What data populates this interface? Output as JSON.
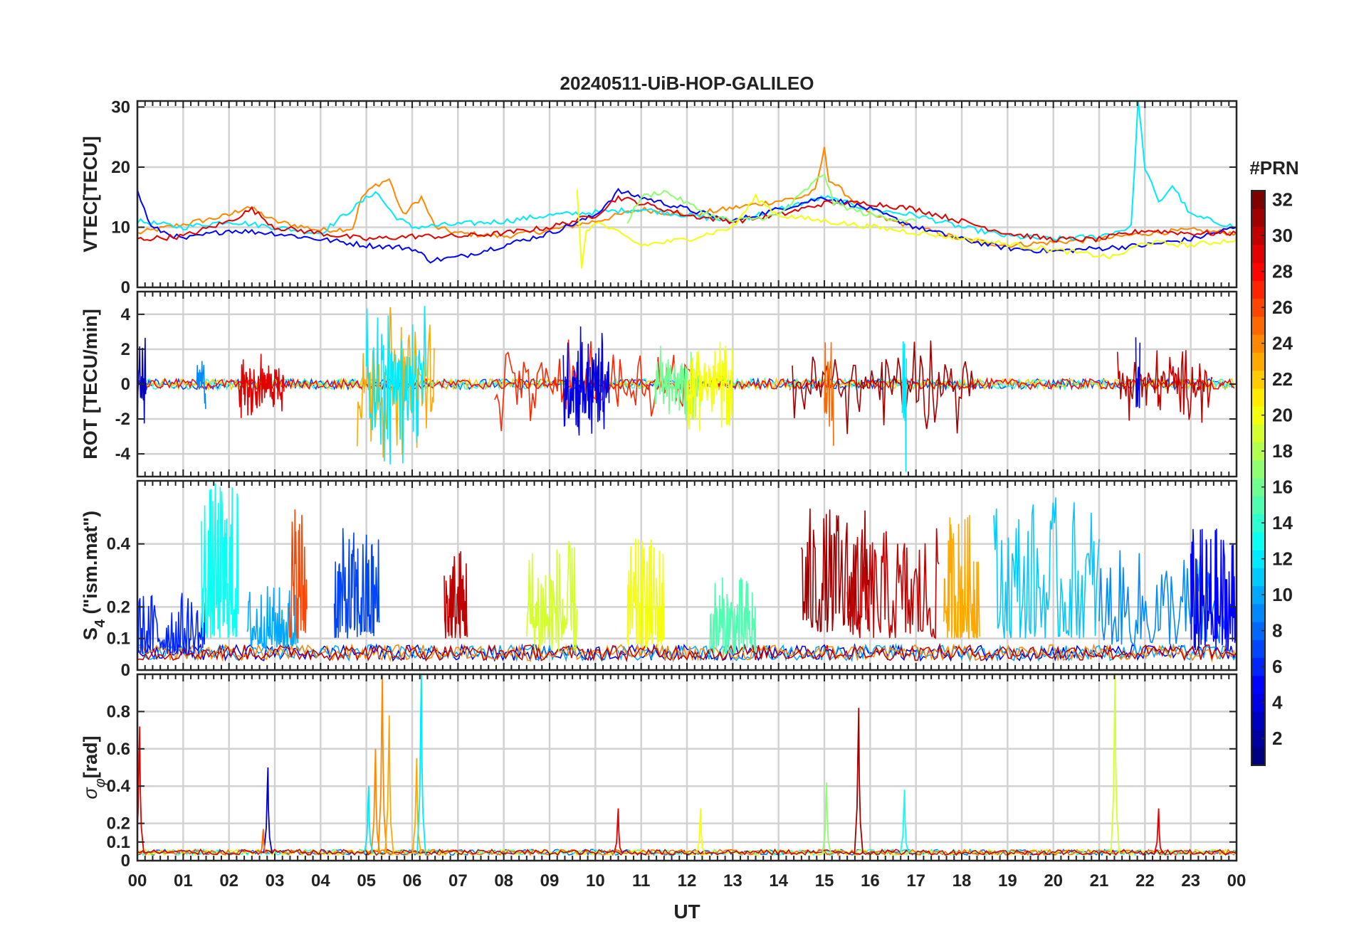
{
  "title": "20240511-UiB-HOP-GALILEO",
  "x_axis": {
    "label": "UT",
    "ticks": [
      "00",
      "01",
      "02",
      "03",
      "04",
      "05",
      "06",
      "07",
      "08",
      "09",
      "10",
      "11",
      "12",
      "13",
      "14",
      "15",
      "16",
      "17",
      "18",
      "19",
      "20",
      "21",
      "22",
      "23",
      "00"
    ],
    "range_hours": [
      0,
      24
    ]
  },
  "colorbar": {
    "label": "#PRN",
    "range": [
      1,
      32
    ],
    "ticks": [
      "2",
      "4",
      "6",
      "8",
      "10",
      "12",
      "14",
      "16",
      "18",
      "20",
      "22",
      "24",
      "26",
      "28",
      "30",
      "32"
    ],
    "colormap": "jet"
  },
  "chart_data": [
    {
      "id": "vtec",
      "type": "line",
      "ylabel": "VTEC[TECU]",
      "ylim": [
        0,
        31
      ],
      "yticks": [
        0,
        10,
        20,
        30
      ],
      "ytick_labels": [
        "0",
        "10",
        "20",
        "30"
      ],
      "grid": true,
      "series": [
        {
          "prn": 24,
          "points": [
            [
              0,
              9
            ],
            [
              1,
              10.5
            ],
            [
              2,
              12
            ],
            [
              2.4,
              13.5
            ],
            [
              3,
              11
            ],
            [
              4,
              9.5
            ],
            [
              4.7,
              9.8
            ],
            [
              4.9,
              15
            ],
            [
              5.2,
              17
            ],
            [
              5.5,
              18
            ],
            [
              5.8,
              12
            ],
            [
              6.2,
              15
            ],
            [
              6.5,
              10
            ],
            [
              7,
              9
            ],
            [
              8,
              8.5
            ],
            [
              9,
              9.5
            ],
            [
              10,
              11
            ],
            [
              11,
              13
            ],
            [
              12,
              12
            ],
            [
              14.5,
              15
            ],
            [
              14.8,
              16
            ],
            [
              15,
              23
            ],
            [
              15.1,
              18
            ],
            [
              16,
              12
            ],
            [
              17,
              10
            ],
            [
              18,
              8
            ],
            [
              19,
              7
            ],
            [
              20,
              7.5
            ],
            [
              21,
              8
            ],
            [
              22,
              9
            ],
            [
              23,
              9.5
            ],
            [
              24,
              9
            ]
          ]
        },
        {
          "prn": 12,
          "points": [
            [
              0,
              11
            ],
            [
              1,
              10
            ],
            [
              2,
              11
            ],
            [
              3,
              10
            ],
            [
              4,
              9
            ],
            [
              5.2,
              16
            ],
            [
              5.6,
              12
            ],
            [
              6,
              10
            ],
            [
              7,
              10.5
            ],
            [
              8,
              11
            ],
            [
              9,
              12
            ],
            [
              10,
              12.5
            ],
            [
              11,
              13
            ],
            [
              12,
              12
            ],
            [
              13,
              11
            ],
            [
              14,
              13
            ],
            [
              15,
              15
            ],
            [
              16,
              13
            ],
            [
              17,
              12
            ],
            [
              18,
              10
            ],
            [
              19,
              8.5
            ],
            [
              20,
              8
            ],
            [
              21,
              8.5
            ],
            [
              21.7,
              10
            ],
            [
              21.85,
              31
            ],
            [
              22,
              20
            ],
            [
              22.3,
              14
            ],
            [
              22.6,
              17
            ],
            [
              23,
              12
            ],
            [
              24,
              10
            ]
          ]
        },
        {
          "prn": 5,
          "points": [
            [
              0,
              16
            ],
            [
              0.3,
              10
            ],
            [
              1,
              8
            ],
            [
              2,
              9.5
            ],
            [
              3,
              9
            ],
            [
              4,
              8
            ],
            [
              5,
              7
            ],
            [
              6,
              6.5
            ],
            [
              6.4,
              4.5
            ],
            [
              7,
              5
            ],
            [
              8,
              7
            ],
            [
              9,
              9
            ],
            [
              10,
              12
            ],
            [
              10.5,
              16
            ],
            [
              11,
              15
            ],
            [
              12,
              13
            ],
            [
              13,
              11
            ],
            [
              14,
              13
            ],
            [
              15,
              15
            ],
            [
              16,
              13
            ],
            [
              17,
              10
            ],
            [
              18,
              8
            ],
            [
              19,
              6.5
            ],
            [
              20,
              6
            ],
            [
              21,
              6.5
            ],
            [
              22,
              7
            ],
            [
              23,
              8
            ],
            [
              24,
              10
            ]
          ]
        },
        {
          "prn": 29,
          "points": [
            [
              0,
              8
            ],
            [
              1,
              8.5
            ],
            [
              2,
              11
            ],
            [
              2.5,
              13
            ],
            [
              3,
              10
            ],
            [
              4,
              9
            ],
            [
              5,
              8
            ],
            [
              6,
              8.5
            ],
            [
              7,
              8.5
            ],
            [
              8,
              9
            ],
            [
              9,
              10
            ],
            [
              10,
              12
            ],
            [
              10.5,
              15
            ],
            [
              11,
              14
            ],
            [
              12,
              12
            ],
            [
              13,
              11
            ],
            [
              14,
              12
            ],
            [
              15,
              14
            ],
            [
              16,
              14
            ],
            [
              17,
              13
            ],
            [
              18,
              11
            ],
            [
              19,
              9
            ],
            [
              20,
              8
            ],
            [
              21,
              8
            ],
            [
              22,
              9.5
            ],
            [
              23,
              9
            ],
            [
              24,
              9
            ]
          ]
        },
        {
          "prn": 17,
          "points": [
            [
              10.7,
              11
            ],
            [
              11,
              15
            ],
            [
              11.5,
              16
            ],
            [
              12,
              14
            ],
            [
              12.5,
              12
            ],
            [
              13,
              11
            ],
            [
              14,
              12
            ],
            [
              15,
              19
            ],
            [
              15.2,
              14
            ],
            [
              16,
              12
            ],
            [
              17,
              11
            ]
          ]
        },
        {
          "prn": 20,
          "points": [
            [
              9.6,
              16
            ],
            [
              9.7,
              3.5
            ],
            [
              9.8,
              9
            ],
            [
              10,
              11
            ],
            [
              11,
              7
            ],
            [
              12,
              8
            ],
            [
              13,
              10
            ],
            [
              13.5,
              15
            ],
            [
              14,
              12
            ],
            [
              21.3,
              5
            ],
            [
              21.6,
              6
            ],
            [
              22,
              7.5
            ],
            [
              23,
              7
            ],
            [
              24,
              8
            ]
          ]
        }
      ]
    },
    {
      "id": "rot",
      "type": "line",
      "ylabel": "ROT [TECU/min]",
      "ylim": [
        -5.3,
        5.3
      ],
      "yticks": [
        -4,
        -2,
        0,
        2,
        4
      ],
      "ytick_labels": [
        "-4",
        "-2",
        "0",
        "2",
        "4"
      ],
      "grid": true,
      "bursts": [
        {
          "start": 0,
          "end": 0.2,
          "amp": 3.5,
          "prn": 3
        },
        {
          "start": 1.3,
          "end": 1.5,
          "amp": 2.5,
          "prn": 9
        },
        {
          "start": 2.2,
          "end": 3.2,
          "amp": 2.2,
          "prn": 29
        },
        {
          "start": 4.8,
          "end": 6.5,
          "amp": 5.3,
          "prn": 23
        },
        {
          "start": 5.0,
          "end": 6.3,
          "amp": 5.3,
          "prn": 12
        },
        {
          "start": 7.8,
          "end": 12.2,
          "amp": 3.2,
          "prn": 27
        },
        {
          "start": 9.3,
          "end": 10.3,
          "amp": 4.5,
          "prn": 4
        },
        {
          "start": 11.3,
          "end": 12.3,
          "amp": 2.6,
          "prn": 16
        },
        {
          "start": 12.0,
          "end": 13.0,
          "amp": 3.0,
          "prn": 20
        },
        {
          "start": 14.3,
          "end": 18.3,
          "amp": 3.2,
          "prn": 31
        },
        {
          "start": 15.0,
          "end": 15.2,
          "amp": 5.3,
          "prn": 25
        },
        {
          "start": 16.7,
          "end": 16.8,
          "amp": 5.3,
          "prn": 12
        },
        {
          "start": 21.4,
          "end": 23.5,
          "amp": 2.5,
          "prn": 30
        },
        {
          "start": 21.8,
          "end": 21.9,
          "amp": 4.5,
          "prn": 4
        }
      ]
    },
    {
      "id": "s4",
      "type": "line",
      "ylabel": "S4 (\"ism.mat\")",
      "ylim": [
        0,
        0.6
      ],
      "yticks": [
        0,
        0.1,
        0.2,
        0.4
      ],
      "ytick_labels": [
        "0",
        "0.1",
        "0.2",
        "0.4"
      ],
      "grid": true,
      "bursts": [
        {
          "start": 0,
          "end": 1.5,
          "base": 0.05,
          "amp": 0.2,
          "prn": 6
        },
        {
          "start": 1.4,
          "end": 2.2,
          "base": 0.1,
          "amp": 0.5,
          "prn": 13
        },
        {
          "start": 2.4,
          "end": 3.5,
          "base": 0.07,
          "amp": 0.2,
          "prn": 10
        },
        {
          "start": 3.3,
          "end": 3.7,
          "base": 0.1,
          "amp": 0.45,
          "prn": 26
        },
        {
          "start": 4.3,
          "end": 5.3,
          "base": 0.1,
          "amp": 0.35,
          "prn": 7
        },
        {
          "start": 6.7,
          "end": 7.2,
          "base": 0.1,
          "amp": 0.3,
          "prn": 30
        },
        {
          "start": 8.5,
          "end": 9.6,
          "base": 0.06,
          "amp": 0.35,
          "prn": 19
        },
        {
          "start": 10.7,
          "end": 11.5,
          "base": 0.07,
          "amp": 0.35,
          "prn": 20
        },
        {
          "start": 12.5,
          "end": 13.5,
          "base": 0.05,
          "amp": 0.25,
          "prn": 15
        },
        {
          "start": 14.5,
          "end": 16.0,
          "base": 0.12,
          "amp": 0.4,
          "prn": 31
        },
        {
          "start": 15.5,
          "end": 17.5,
          "base": 0.1,
          "amp": 0.35,
          "prn": 30
        },
        {
          "start": 17.6,
          "end": 18.4,
          "base": 0.1,
          "amp": 0.4,
          "prn": 23
        },
        {
          "start": 18.7,
          "end": 21.0,
          "base": 0.1,
          "amp": 0.45,
          "prn": 11
        },
        {
          "start": 21.0,
          "end": 23.8,
          "base": 0.08,
          "amp": 0.3,
          "prn": 9
        },
        {
          "start": 23.0,
          "end": 24.0,
          "base": 0.06,
          "amp": 0.4,
          "prn": 5
        }
      ]
    },
    {
      "id": "sigma_phi",
      "type": "line",
      "ylabel": "σφ[rad]",
      "ylim": [
        0,
        1.0
      ],
      "yticks": [
        0,
        0.1,
        0.2,
        0.4,
        0.6,
        0.8
      ],
      "ytick_labels": [
        "0",
        "0.1",
        "0.2",
        "0.4",
        "0.6",
        "0.8"
      ],
      "grid": true,
      "spikes": [
        {
          "t": 0.05,
          "v": 0.72,
          "prn": 29
        },
        {
          "t": 2.85,
          "v": 0.5,
          "prn": 3
        },
        {
          "t": 2.75,
          "v": 0.17,
          "prn": 25
        },
        {
          "t": 5.2,
          "v": 0.6,
          "prn": 24
        },
        {
          "t": 5.35,
          "v": 1.0,
          "prn": 24
        },
        {
          "t": 5.5,
          "v": 0.78,
          "prn": 23
        },
        {
          "t": 5.05,
          "v": 0.4,
          "prn": 12
        },
        {
          "t": 6.1,
          "v": 0.55,
          "prn": 23
        },
        {
          "t": 6.2,
          "v": 1.0,
          "prn": 12
        },
        {
          "t": 10.5,
          "v": 0.28,
          "prn": 29
        },
        {
          "t": 12.3,
          "v": 0.28,
          "prn": 20
        },
        {
          "t": 15.05,
          "v": 0.42,
          "prn": 17
        },
        {
          "t": 15.75,
          "v": 0.82,
          "prn": 31
        },
        {
          "t": 16.75,
          "v": 0.38,
          "prn": 13
        },
        {
          "t": 21.35,
          "v": 1.0,
          "prn": 19
        },
        {
          "t": 22.3,
          "v": 0.28,
          "prn": 29
        }
      ]
    }
  ]
}
